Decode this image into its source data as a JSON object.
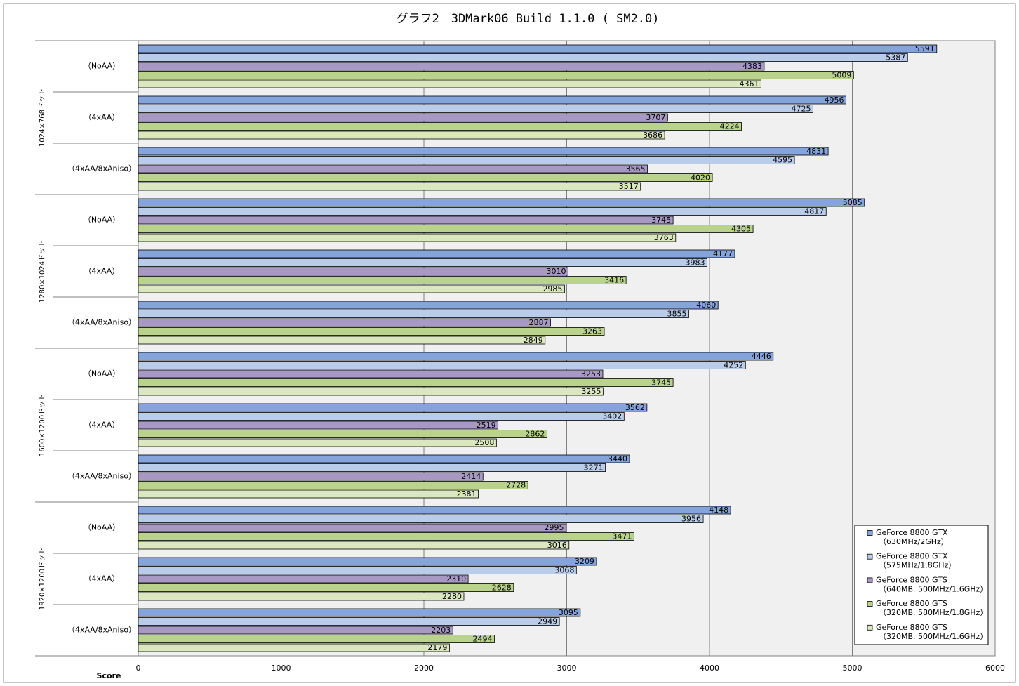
{
  "chart_data": {
    "type": "hbar",
    "title": "グラフ2　3DMark06 Build 1.1.0 ( SM2.0)",
    "x_label": "Score",
    "groups": [
      "1024×768ドット",
      "1280×1024ドット",
      "1600×1200ドット",
      "1920×1200ドット"
    ],
    "categories": [
      "（NoAA）",
      "（4xAA）",
      "（4xAA/8xAniso）",
      "（NoAA）",
      "（4xAA）",
      "（4xAA/8xAniso）",
      "（NoAA）",
      "（4xAA）",
      "（4xAA/8xAniso）",
      "（NoAA）",
      "（4xAA）",
      "（4xAA/8xAniso）"
    ],
    "series": [
      {
        "name": "GeForce 8800 GTX",
        "detail": "（630MHz/2GHz）",
        "color": "#86a4dc",
        "values": [
          5591,
          4956,
          4831,
          5085,
          4177,
          4060,
          4446,
          3562,
          3440,
          4148,
          3209,
          3095
        ]
      },
      {
        "name": "GeForce 8800 GTX",
        "detail": "（575MHz/1.8GHz）",
        "color": "#b9cdea",
        "values": [
          5387,
          4725,
          4595,
          4817,
          3983,
          3855,
          4252,
          3402,
          3271,
          3956,
          3068,
          2949
        ]
      },
      {
        "name": "GeForce 8800 GTS",
        "detail": "（640MB, 500MHz/1.6GHz）",
        "color": "#a899c4",
        "values": [
          4383,
          3707,
          3565,
          3745,
          3010,
          2887,
          3253,
          2519,
          2414,
          2995,
          2310,
          2203
        ]
      },
      {
        "name": "GeForce 8800 GTS",
        "detail": "（320MB, 580MHz/1.8GHz）",
        "color": "#b9d38c",
        "values": [
          5009,
          4224,
          4020,
          4305,
          3416,
          3263,
          3745,
          2862,
          2728,
          3471,
          2628,
          2494
        ]
      },
      {
        "name": "GeForce 8800 GTS",
        "detail": "（320MB, 500MHz/1.6GHz）",
        "color": "#dbe8bf",
        "values": [
          4361,
          3686,
          3517,
          3763,
          2985,
          2849,
          3255,
          2508,
          2381,
          3016,
          2280,
          2179
        ]
      }
    ],
    "xlim": [
      0,
      6000
    ],
    "xticks": [
      0,
      1000,
      2000,
      3000,
      4000,
      5000,
      6000
    ],
    "grid": true
  }
}
